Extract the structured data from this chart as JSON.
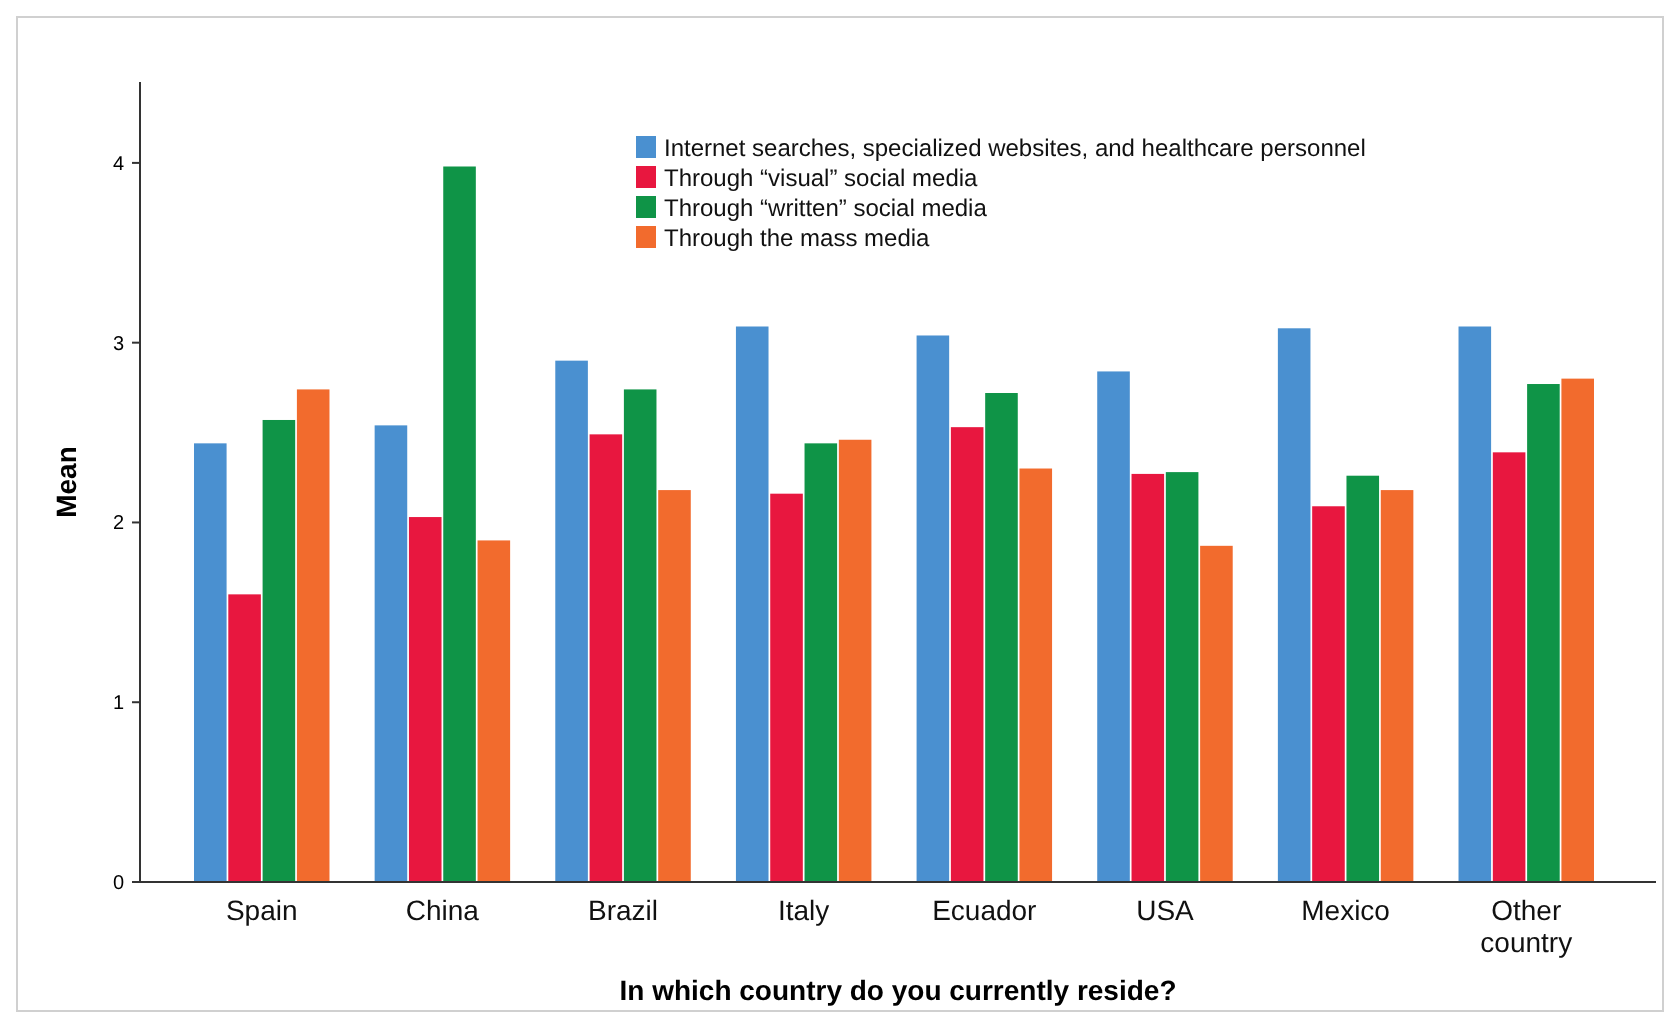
{
  "chart_data": {
    "type": "bar",
    "xlabel": "In which country do you currently reside?",
    "ylabel": "Mean",
    "categories": [
      "Spain",
      "China",
      "Brazil",
      "Italy",
      "Ecuador",
      "USA",
      "Mexico",
      "Other country"
    ],
    "series": [
      {
        "name": "Internet searches, specialized websites, and healthcare personnel",
        "color": "#4a90d0",
        "values": [
          2.44,
          2.54,
          2.9,
          3.09,
          3.04,
          2.84,
          3.08,
          3.09
        ]
      },
      {
        "name": "Through “visual” social media",
        "color": "#e8173f",
        "values": [
          1.6,
          2.03,
          2.49,
          2.16,
          2.53,
          2.27,
          2.09,
          2.39
        ]
      },
      {
        "name": "Through “written” social media",
        "color": "#0f9447",
        "values": [
          2.57,
          3.98,
          2.74,
          2.44,
          2.72,
          2.28,
          2.26,
          2.77
        ]
      },
      {
        "name": "Through the mass media",
        "color": "#f26b2d",
        "values": [
          2.74,
          1.9,
          2.18,
          2.46,
          2.3,
          1.87,
          2.18,
          2.8
        ]
      }
    ],
    "ylim": [
      0,
      4.45
    ],
    "yticks": [
      0,
      1,
      2,
      3,
      4
    ],
    "grid": false,
    "legend": "top"
  }
}
